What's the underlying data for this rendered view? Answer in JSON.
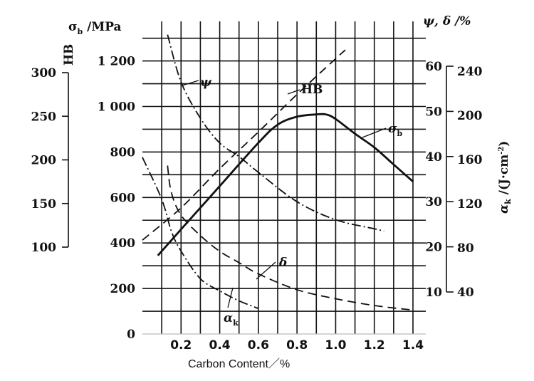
{
  "chart_data": {
    "type": "line",
    "xlabel": "Carbon Content／%",
    "x_ticks": [
      "0.2",
      "0.4",
      "0.6",
      "0.8",
      "1.0",
      "1.2",
      "1.4"
    ],
    "xlim": [
      0,
      1.4
    ],
    "grid": true,
    "axes": {
      "sigma_b": {
        "label": "σ_b /MPa",
        "label_main": "σ",
        "label_sub": "b",
        "label_rest": " /MPa",
        "range": [
          0,
          1400
        ],
        "ticks": [
          "0",
          "200",
          "400",
          "600",
          "800",
          "1 000",
          "1 200"
        ]
      },
      "HB": {
        "label": "HB",
        "range": [
          100,
          300
        ],
        "ticks": [
          "100",
          "150",
          "200",
          "250",
          "300"
        ]
      },
      "psi_delta": {
        "label": "ψ, δ /%",
        "range": [
          10,
          60
        ],
        "ticks": [
          "10",
          "20",
          "30",
          "40",
          "50",
          "60"
        ]
      },
      "alpha_k": {
        "label": "α_k /(J·cm⁻²)",
        "label_main": "α",
        "label_sub": "k",
        "label_rest": " /(J·cm",
        "label_sup": "-2",
        "label_end": ")",
        "range": [
          40,
          240
        ],
        "ticks": [
          "40",
          "80",
          "120",
          "160",
          "200",
          "240"
        ]
      }
    },
    "series": [
      {
        "name": "σ_b",
        "label_main": "σ",
        "label_sub": "b",
        "axis": "sigma_b",
        "style": "solid",
        "x": [
          0.08,
          0.2,
          0.4,
          0.6,
          0.7,
          0.8,
          0.9,
          0.95,
          1.0,
          1.1,
          1.2,
          1.3,
          1.4
        ],
        "y": [
          345,
          460,
          650,
          840,
          920,
          955,
          965,
          965,
          945,
          880,
          820,
          745,
          670
        ]
      },
      {
        "name": "HB",
        "axis": "HB",
        "style": "dashed",
        "x": [
          0,
          0.2,
          0.4,
          0.6,
          0.8,
          1.0,
          1.05
        ],
        "y": [
          108,
          145,
          190,
          232,
          275,
          316,
          326
        ]
      },
      {
        "name": "ψ",
        "label_main": "ψ",
        "axis": "psi_delta",
        "style": "dashdot",
        "x": [
          0.13,
          0.2,
          0.3,
          0.4,
          0.5,
          0.6,
          0.8,
          1.0,
          1.2,
          1.25
        ],
        "y": [
          67,
          56.5,
          48.5,
          43,
          40,
          36.5,
          30,
          26,
          24,
          23.5
        ]
      },
      {
        "name": "δ",
        "label_main": "δ",
        "axis": "psi_delta",
        "style": "dashed",
        "x": [
          0.13,
          0.15,
          0.2,
          0.3,
          0.4,
          0.5,
          0.6,
          0.8,
          1.0,
          1.2,
          1.4
        ],
        "y": [
          38,
          32,
          27,
          22.5,
          19,
          16.5,
          14,
          10.5,
          8.5,
          7,
          6
        ]
      },
      {
        "name": "α_k",
        "label_main": "α",
        "label_sub": "k",
        "axis": "alpha_k",
        "style": "dashdot",
        "x": [
          0,
          0.1,
          0.15,
          0.2,
          0.3,
          0.4,
          0.5,
          0.6
        ],
        "y": [
          162,
          124,
          95,
          77,
          52,
          41,
          32,
          25
        ]
      }
    ]
  }
}
